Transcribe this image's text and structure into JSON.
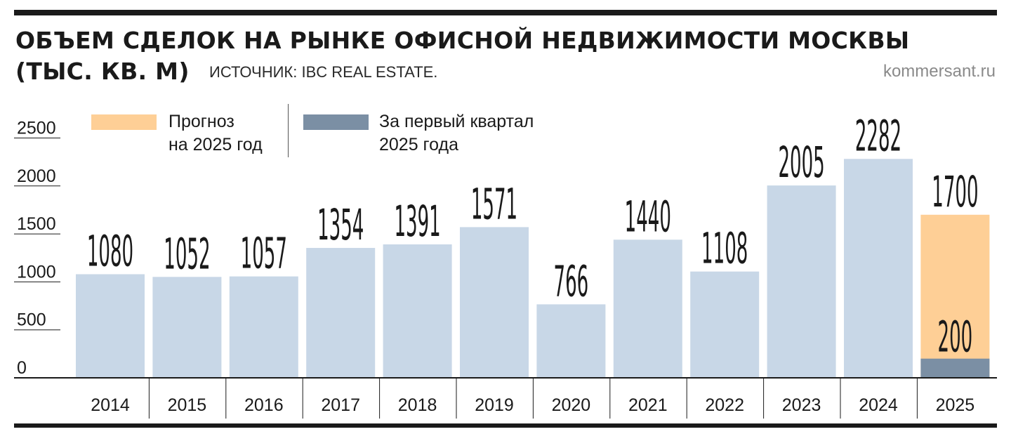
{
  "header": {
    "title_line1": "ОБЪЕМ СДЕЛОК НА РЫНКЕ ОФИСНОЙ НЕДВИЖИМОСТИ МОСКВЫ",
    "title_line2": "(ТЫС. КВ. М)",
    "source": "ИСТОЧНИК: IBC REAL ESTATE.",
    "site": "kommersant.ru"
  },
  "legend": {
    "forecast_line1": "Прогноз",
    "forecast_line2": "на 2025 год",
    "q1_line1": "За первый квартал",
    "q1_line2": "2025 года"
  },
  "colors": {
    "bar": "#c8d7e7",
    "forecast": "#fecf96",
    "q1": "#7b8fa4",
    "axis": "#1a1a1a"
  },
  "chart_data": {
    "type": "bar",
    "title": "ОБЪЕМ СДЕЛОК НА РЫНКЕ ОФИСНОЙ НЕДВИЖИМОСТИ МОСКВЫ (ТЫС. КВ. М)",
    "categories": [
      "2014",
      "2015",
      "2016",
      "2017",
      "2018",
      "2019",
      "2020",
      "2021",
      "2022",
      "2023",
      "2024",
      "2025"
    ],
    "values": [
      1080,
      1052,
      1057,
      1354,
      1391,
      1571,
      766,
      1440,
      1108,
      2005,
      2282,
      1700
    ],
    "value_labels": [
      "1080",
      "1052",
      "1057",
      "1354",
      "1391",
      "1571",
      "766",
      "1440",
      "1108",
      "2005",
      "2282",
      "1700"
    ],
    "forecast_index": 11,
    "q1_2025": 200,
    "q1_label": "200",
    "yticks": [
      0,
      500,
      1000,
      1500,
      2000,
      2500
    ],
    "ytick_labels": [
      "0",
      "500",
      "1000",
      "1500",
      "2000",
      "2500"
    ],
    "ylim": [
      0,
      2700
    ],
    "grid": false,
    "legend_position": "top-left"
  }
}
